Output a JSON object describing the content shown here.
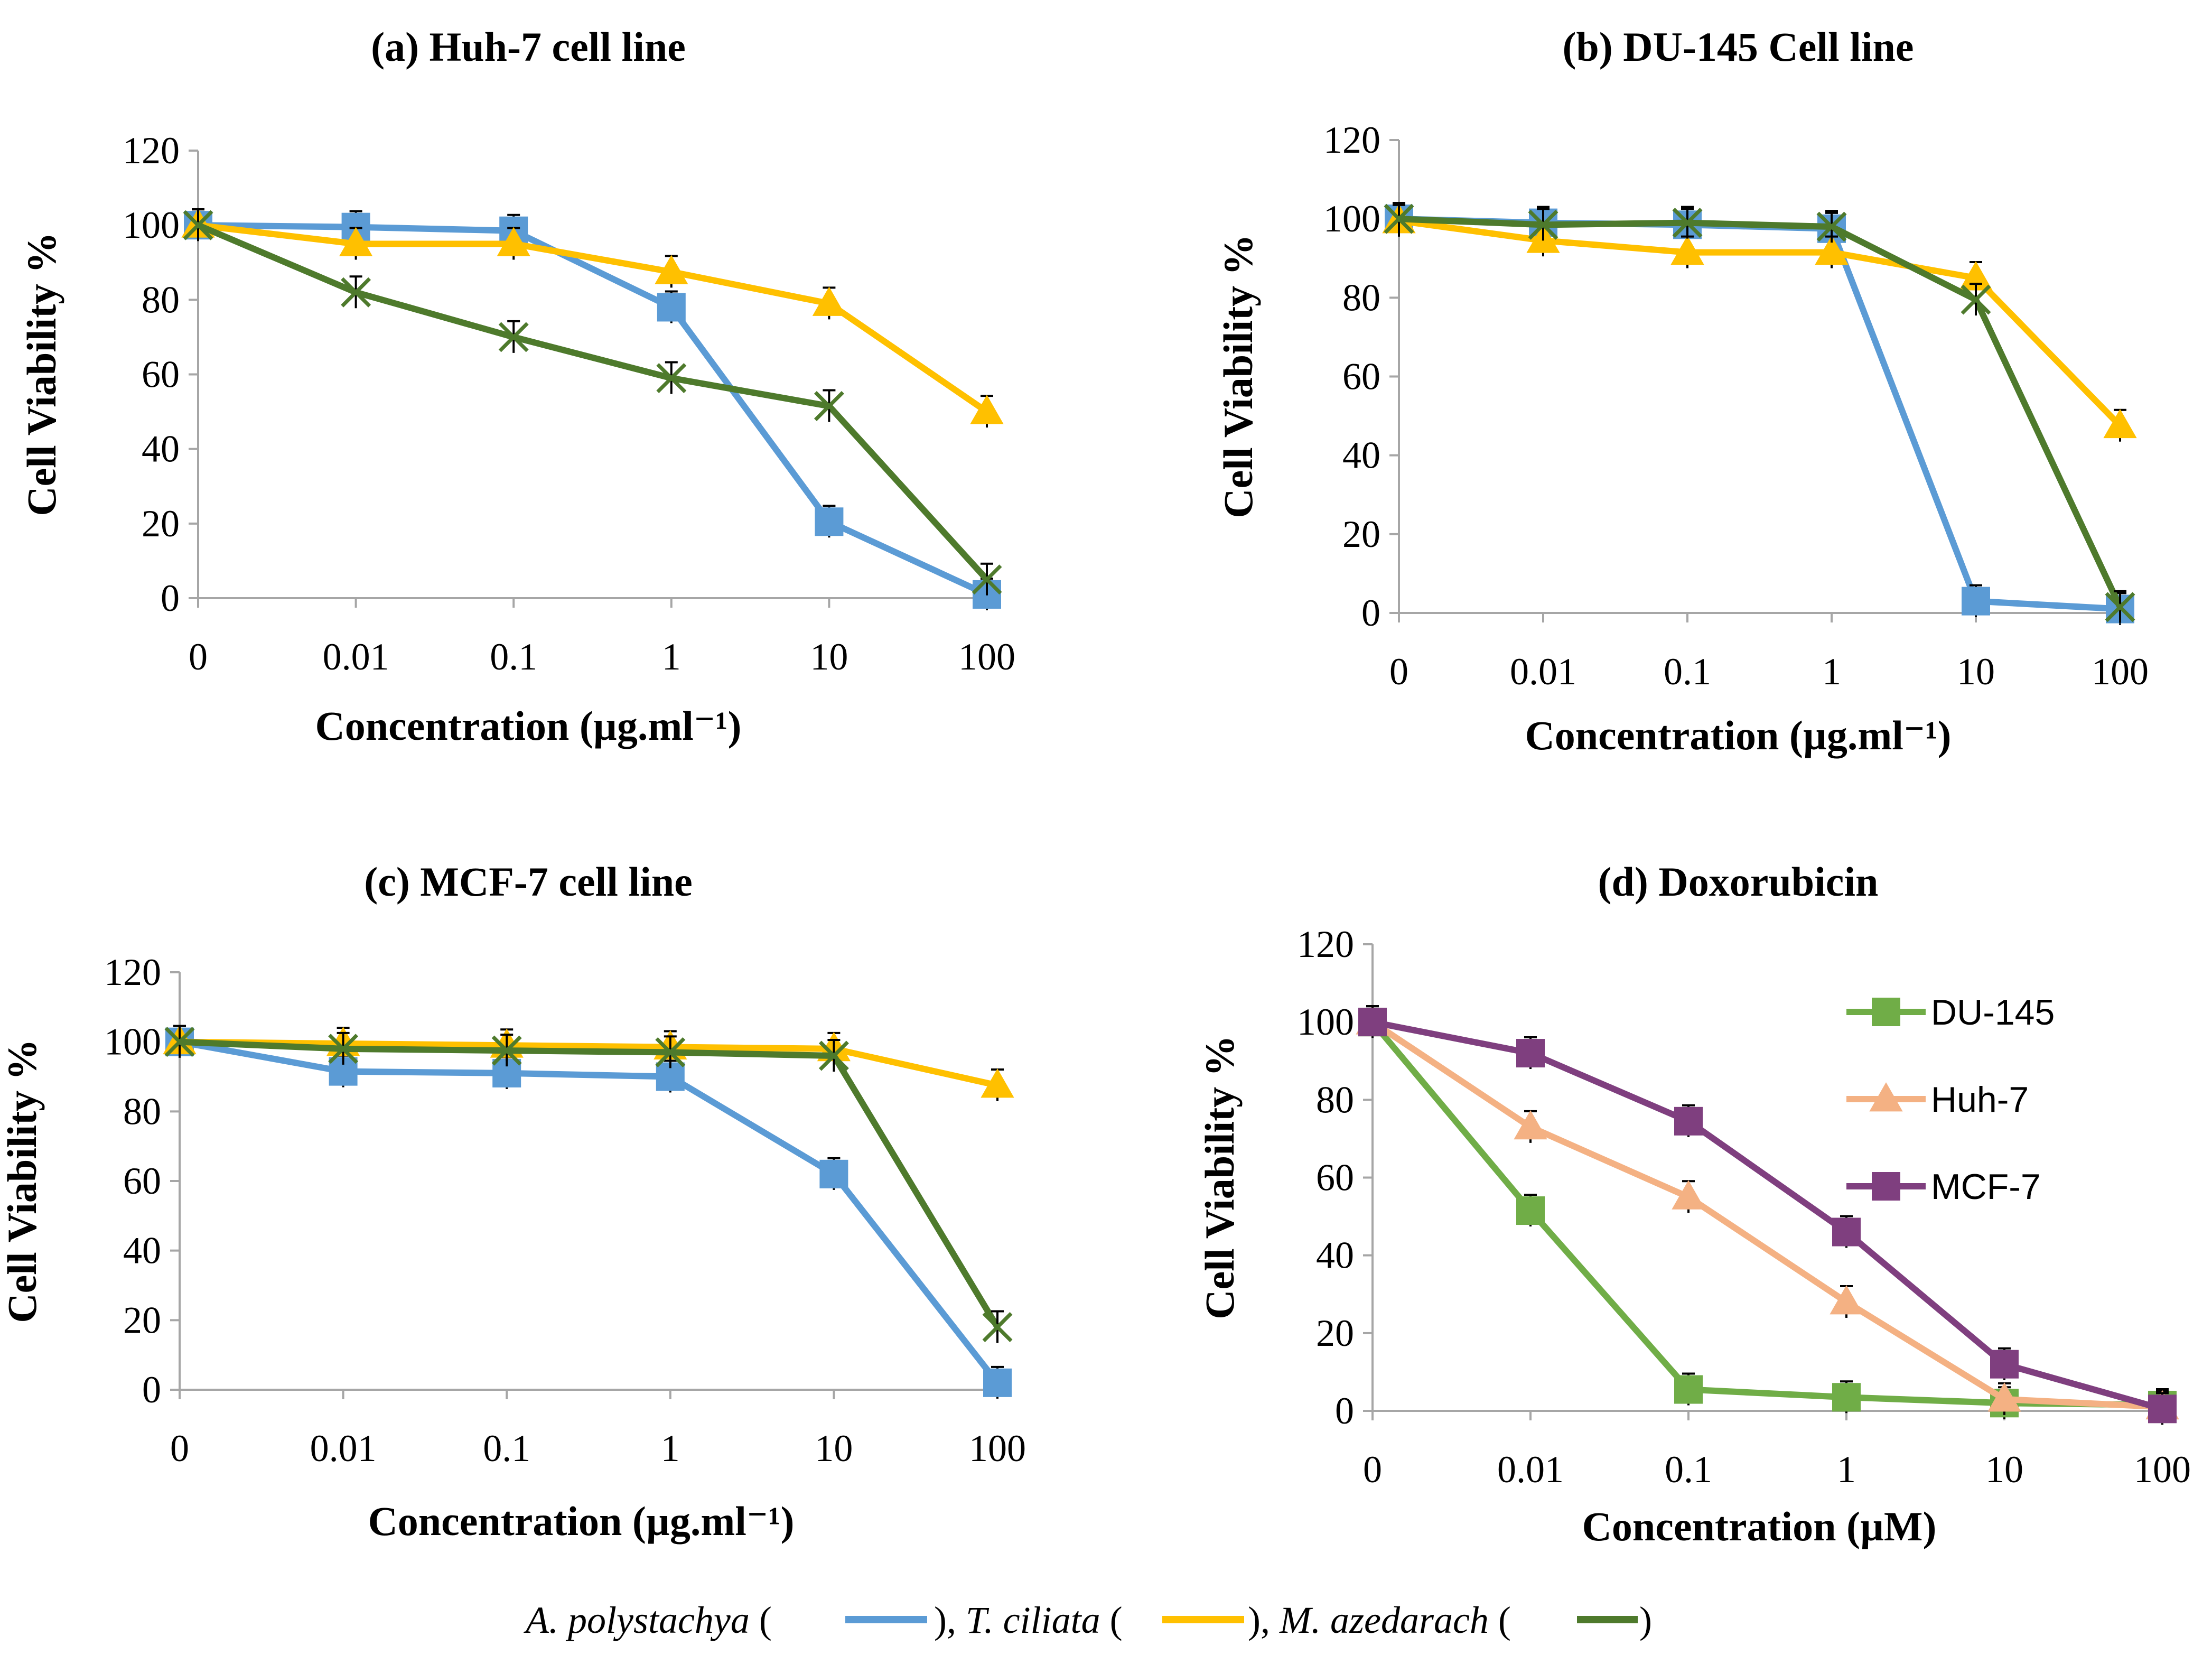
{
  "chart_data": [
    {
      "type": "line",
      "title": "(a) Huh-7 cell line",
      "xlabel": "Concentration (µg.ml⁻¹)",
      "ylabel": "Cell Viability %",
      "categories": [
        "0",
        "0.01",
        "0.1",
        "1",
        "10",
        "100"
      ],
      "ylim": [
        0,
        120
      ],
      "yticks": [
        "0",
        "20",
        "40",
        "60",
        "80",
        "100",
        "120"
      ],
      "series": [
        {
          "name": "A. polystachya",
          "color": "#5b9bd5",
          "marker": "square",
          "values": [
            100,
            99.5,
            98.5,
            78,
            20.5,
            1
          ]
        },
        {
          "name": "T. ciliata",
          "color": "#ffc000",
          "marker": "triangle",
          "values": [
            100,
            95,
            95,
            87.5,
            79,
            50
          ]
        },
        {
          "name": "M. azedarach",
          "color": "#4e7a2c",
          "marker": "x",
          "values": [
            100,
            82,
            70,
            59,
            51.5,
            5
          ]
        }
      ]
    },
    {
      "type": "line",
      "title": "(b) DU-145 Cell line",
      "xlabel": "Concentration (µg.ml⁻¹)",
      "ylabel": "Cell Viability %",
      "categories": [
        "0",
        "0.01",
        "0.1",
        "1",
        "10",
        "100"
      ],
      "ylim": [
        0,
        120
      ],
      "yticks": [
        "0",
        "20",
        "40",
        "60",
        "80",
        "100",
        "120"
      ],
      "series": [
        {
          "name": "A. polystachya",
          "color": "#5b9bd5",
          "marker": "square",
          "values": [
            100,
            99,
            98.5,
            97.5,
            3,
            1
          ]
        },
        {
          "name": "T. ciliata",
          "color": "#ffc000",
          "marker": "triangle",
          "values": [
            99.5,
            94.5,
            91.5,
            91.5,
            85,
            47.5
          ]
        },
        {
          "name": "M. azedarach",
          "color": "#4e7a2c",
          "marker": "x",
          "values": [
            100,
            98.5,
            99,
            98,
            79.5,
            1.5
          ]
        }
      ]
    },
    {
      "type": "line",
      "title": "(c) MCF-7 cell line",
      "xlabel": "Concentration (µg.ml⁻¹)",
      "ylabel": "Cell Viability %",
      "categories": [
        "0",
        "0.01",
        "0.1",
        "1",
        "10",
        "100"
      ],
      "ylim": [
        0,
        120
      ],
      "yticks": [
        "0",
        "20",
        "40",
        "60",
        "80",
        "100",
        "120"
      ],
      "series": [
        {
          "name": "A. polystachya",
          "color": "#5b9bd5",
          "marker": "square",
          "values": [
            100,
            91.5,
            91,
            90,
            62,
            2
          ]
        },
        {
          "name": "T. ciliata",
          "color": "#ffc000",
          "marker": "triangle",
          "values": [
            100,
            99.5,
            99,
            98.5,
            98,
            87.5
          ]
        },
        {
          "name": "M. azedarach",
          "color": "#4e7a2c",
          "marker": "x",
          "values": [
            100,
            98,
            97.5,
            97,
            96,
            18
          ]
        }
      ]
    },
    {
      "type": "line",
      "title": "(d) Doxorubicin",
      "xlabel": "Concentration (µM)",
      "ylabel": "Cell Viability %",
      "categories": [
        "0",
        "0.01",
        "0.1",
        "1",
        "10",
        "100"
      ],
      "ylim": [
        0,
        120
      ],
      "yticks": [
        "0",
        "20",
        "40",
        "60",
        "80",
        "100",
        "120"
      ],
      "legend_position": "top-right",
      "series": [
        {
          "name": "DU-145",
          "color": "#70ad47",
          "marker": "square",
          "values": [
            100,
            51.5,
            5.5,
            3.5,
            2,
            1.5
          ]
        },
        {
          "name": "Huh-7",
          "color": "#f4b183",
          "marker": "triangle",
          "values": [
            100,
            73,
            55,
            28,
            3,
            1
          ]
        },
        {
          "name": "MCF-7",
          "color": "#7f3f7f",
          "marker": "square",
          "values": [
            100,
            92,
            74.5,
            46,
            12,
            0.5
          ]
        }
      ]
    }
  ],
  "caption": {
    "species_1": "A. polystachya",
    "species_2": "T. ciliata",
    "species_3": "M. azedarach",
    "open_paren": " (",
    "close_sep": "), ",
    "close_end": ")",
    "color_1": "#5b9bd5",
    "color_2": "#ffc000",
    "color_3": "#4e7a2c"
  }
}
